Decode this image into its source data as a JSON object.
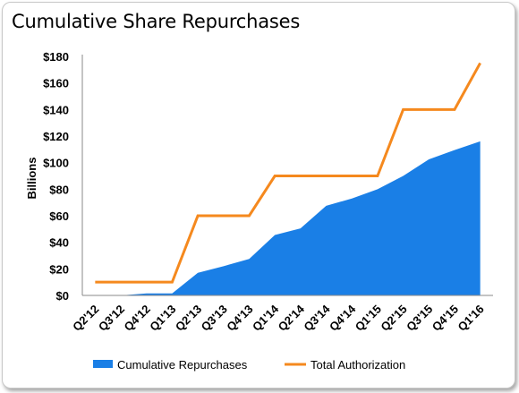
{
  "chart_data": {
    "type": "area",
    "title": "Cumulative Share Repurchases",
    "ylabel": "Billions",
    "xlabel": "",
    "ylim": [
      0,
      180
    ],
    "ytick_labels": [
      "$0",
      "$20",
      "$40",
      "$60",
      "$80",
      "$100",
      "$120",
      "$140",
      "$160",
      "$180"
    ],
    "grid": false,
    "legend_position": "bottom",
    "categories": [
      "Q2'12",
      "Q3'12",
      "Q4'12",
      "Q1'13",
      "Q2'13",
      "Q3'13",
      "Q4'13",
      "Q1'14",
      "Q2'14",
      "Q3'14",
      "Q4'14",
      "Q1'15",
      "Q2'15",
      "Q3'15",
      "Q4'15",
      "Q1'16"
    ],
    "series": [
      {
        "name": "Cumulative Repurchases",
        "kind": "area",
        "color": "#1a7fe6",
        "values": [
          0,
          0,
          1.5,
          1.5,
          17,
          22,
          27.5,
          45.5,
          50.5,
          67.5,
          73,
          80,
          90,
          102.5,
          109.5,
          116
        ]
      },
      {
        "name": "Total Authorization",
        "kind": "step-line",
        "color": "#f5891e",
        "values": [
          10,
          10,
          10,
          10,
          60,
          60,
          60,
          90,
          90,
          90,
          90,
          90,
          140,
          140,
          140,
          175
        ]
      }
    ]
  }
}
